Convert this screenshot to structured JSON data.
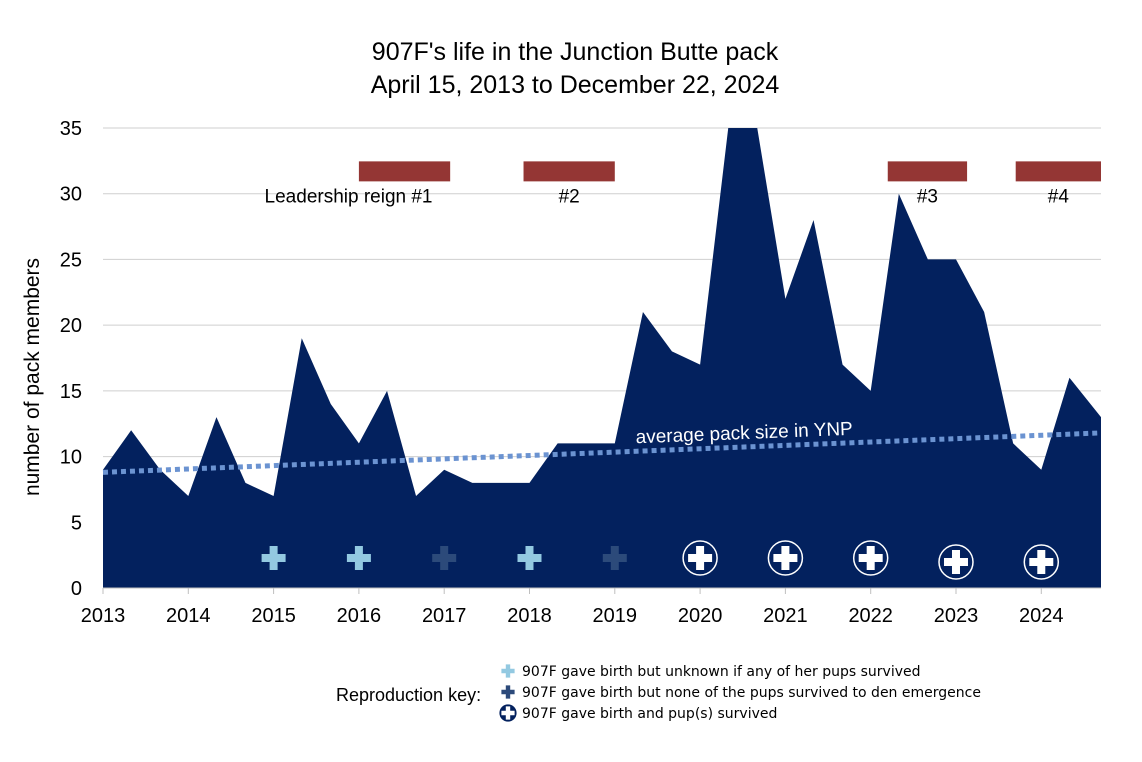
{
  "chart_data": {
    "type": "area",
    "title": [
      "907F's life in the Junction Butte pack",
      "April 15, 2013 to December 22, 2024"
    ],
    "ylabel": "number of pack members",
    "xlabel": "",
    "ylim": [
      0,
      35
    ],
    "xlim": [
      2013,
      2024.7
    ],
    "yticks": [
      "0",
      "5",
      "10",
      "15",
      "20",
      "25",
      "30",
      "35"
    ],
    "xticks": [
      "2013",
      "2014",
      "2015",
      "2016",
      "2017",
      "2018",
      "2019",
      "2020",
      "2021",
      "2022",
      "2023",
      "2024"
    ],
    "grid": true,
    "colors": {
      "area": "#03215e",
      "reign": "#943634",
      "avg_line": "#6b93d1",
      "birth_unknown": "#93c9e1",
      "birth_none": "#2c4a7a",
      "birth_survived": "#ffffff",
      "grid": "#cfcfcf"
    },
    "series": [
      {
        "name": "pack size",
        "x": [
          2013.0,
          2013.33,
          2013.67,
          2014.0,
          2014.33,
          2014.67,
          2015.0,
          2015.33,
          2015.67,
          2016.0,
          2016.33,
          2016.67,
          2017.0,
          2017.33,
          2017.67,
          2018.0,
          2018.33,
          2018.67,
          2019.0,
          2019.33,
          2019.67,
          2020.0,
          2020.33,
          2020.5,
          2020.67,
          2021.0,
          2021.33,
          2021.67,
          2022.0,
          2022.33,
          2022.67,
          2023.0,
          2023.33,
          2023.67,
          2024.0,
          2024.33,
          2024.7
        ],
        "values": [
          9,
          12,
          9,
          7,
          13,
          8,
          7,
          19,
          14,
          11,
          15,
          7,
          9,
          8,
          8,
          8,
          11,
          11,
          11,
          21,
          18,
          17,
          35,
          35,
          35,
          22,
          28,
          17,
          15,
          30,
          25,
          25,
          21,
          11,
          9,
          16,
          13
        ]
      }
    ],
    "average_line": {
      "label": "average pack size in YNP",
      "x": [
        2013.0,
        2024.7
      ],
      "values": [
        8.8,
        11.8
      ]
    },
    "leadership_reigns": [
      {
        "label": "Leadership reign #1",
        "start": 2016.0,
        "end": 2017.07,
        "value": 31.7
      },
      {
        "label": "#2",
        "start": 2017.93,
        "end": 2019.0,
        "value": 31.7
      },
      {
        "label": "#3",
        "start": 2022.2,
        "end": 2023.13,
        "value": 31.7
      },
      {
        "label": "#4",
        "start": 2023.7,
        "end": 2024.7,
        "value": 31.7
      }
    ],
    "reproduction": [
      {
        "year": 2015,
        "type": "unknown"
      },
      {
        "year": 2016,
        "type": "unknown"
      },
      {
        "year": 2017,
        "type": "none"
      },
      {
        "year": 2018,
        "type": "unknown"
      },
      {
        "year": 2019,
        "type": "none"
      },
      {
        "year": 2020,
        "type": "survived"
      },
      {
        "year": 2021,
        "type": "survived"
      },
      {
        "year": 2022,
        "type": "survived"
      },
      {
        "year": 2023,
        "type": "survived"
      },
      {
        "year": 2024,
        "type": "survived"
      }
    ],
    "legend": {
      "title": "Reproduction key:",
      "entries": [
        {
          "type": "unknown",
          "label": "907F gave birth but unknown if any of her pups survived"
        },
        {
          "type": "none",
          "label": "907F gave birth but none of the pups survived to den emergence"
        },
        {
          "type": "survived",
          "label": "907F gave birth and pup(s) survived"
        }
      ]
    }
  }
}
